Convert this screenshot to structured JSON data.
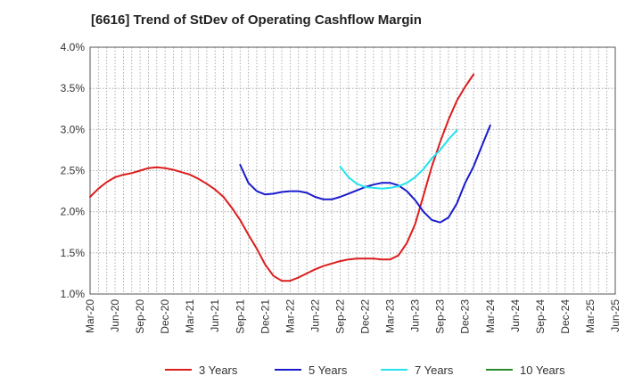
{
  "chart_data": {
    "type": "line",
    "title": "[6616]  Trend of StDev of Operating Cashflow Margin",
    "xlabel": "",
    "ylabel": "",
    "ylim": [
      1.0,
      4.0
    ],
    "y_ticks": [
      "1.0%",
      "1.5%",
      "2.0%",
      "2.5%",
      "3.0%",
      "3.5%",
      "4.0%"
    ],
    "x_ticks": [
      "Mar-20",
      "Jun-20",
      "Sep-20",
      "Dec-20",
      "Mar-21",
      "Jun-21",
      "Sep-21",
      "Dec-21",
      "Mar-22",
      "Jun-22",
      "Sep-22",
      "Dec-22",
      "Mar-23",
      "Jun-23",
      "Sep-23",
      "Dec-23",
      "Mar-24",
      "Jun-24",
      "Sep-24",
      "Dec-24",
      "Mar-25",
      "Jun-25"
    ],
    "grid": "dotted",
    "legend_position": "bottom",
    "series": [
      {
        "name": "3 Years",
        "color": "#dd1c1c",
        "start_index": 0,
        "values": [
          2.18,
          2.28,
          2.36,
          2.42,
          2.45,
          2.47,
          2.5,
          2.53,
          2.54,
          2.53,
          2.51,
          2.48,
          2.45,
          2.4,
          2.34,
          2.27,
          2.18,
          2.05,
          1.9,
          1.72,
          1.55,
          1.36,
          1.22,
          1.16,
          1.16,
          1.2,
          1.25,
          1.3,
          1.34,
          1.37,
          1.4,
          1.42,
          1.43,
          1.43,
          1.43,
          1.42,
          1.42,
          1.47,
          1.62,
          1.85,
          2.2,
          2.55,
          2.85,
          3.12,
          3.35,
          3.52,
          3.67
        ]
      },
      {
        "name": "5 Years",
        "color": "#1a1acd",
        "start_index": 18,
        "values": [
          2.57,
          2.35,
          2.25,
          2.21,
          2.22,
          2.24,
          2.25,
          2.25,
          2.23,
          2.18,
          2.15,
          2.15,
          2.18,
          2.22,
          2.26,
          2.3,
          2.33,
          2.35,
          2.35,
          2.32,
          2.25,
          2.14,
          2.0,
          1.9,
          1.87,
          1.93,
          2.1,
          2.35,
          2.55,
          2.8,
          3.05
        ]
      },
      {
        "name": "7 Years",
        "color": "#22e3ee",
        "start_index": 30,
        "values": [
          2.55,
          2.42,
          2.34,
          2.3,
          2.29,
          2.28,
          2.29,
          2.31,
          2.35,
          2.42,
          2.52,
          2.65,
          2.75,
          2.88,
          2.99
        ]
      },
      {
        "name": "10 Years",
        "color": "#2a8a2a",
        "start_index": 0,
        "values": []
      }
    ]
  }
}
